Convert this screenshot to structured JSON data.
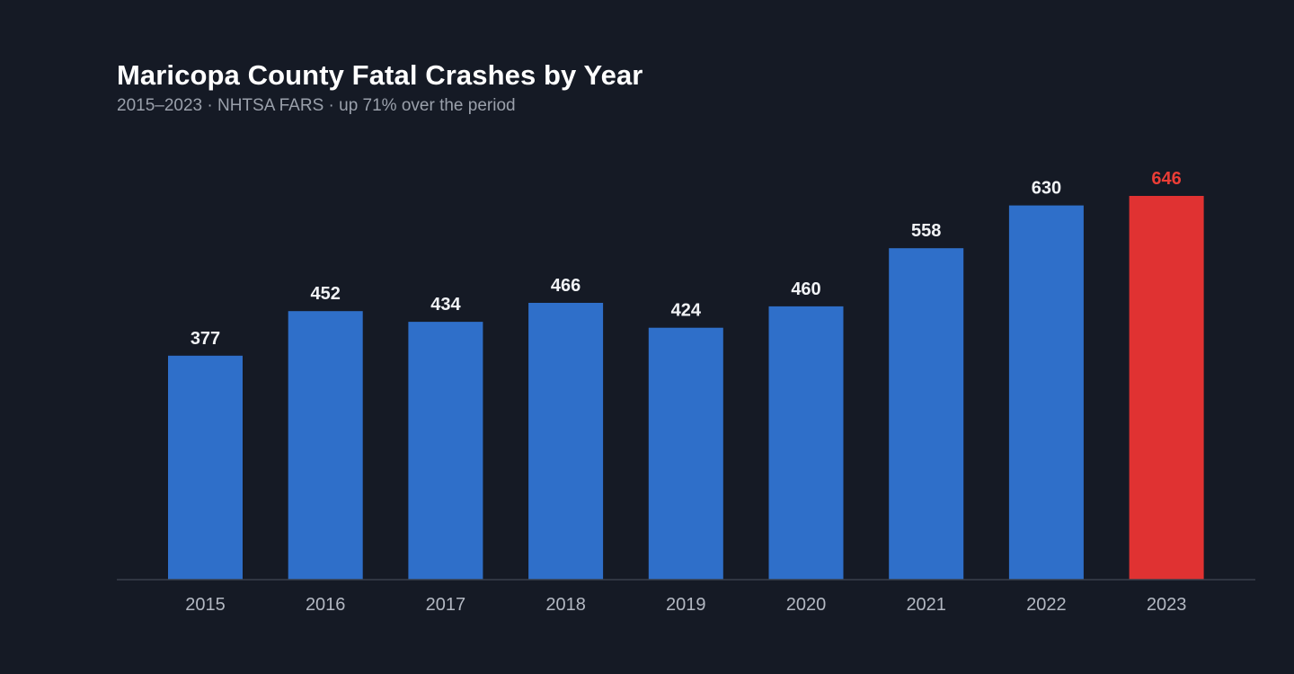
{
  "chart": {
    "title": "Maricopa County Fatal Crashes by Year",
    "subtitle": "2015–2023 · NHTSA FARS · up 71% over the period"
  },
  "colors": {
    "background": "#151a25",
    "bar": "#2f6fc9",
    "highlight": "#e03232",
    "label": "#f1f3f6",
    "highlight_label": "#ea3d36",
    "axis": "#3a404c"
  },
  "chart_data": {
    "type": "bar",
    "title": "Maricopa County Fatal Crashes by Year",
    "subtitle": "2015–2023 · NHTSA FARS · up 71% over the period",
    "xlabel": "",
    "ylabel": "",
    "categories": [
      "2015",
      "2016",
      "2017",
      "2018",
      "2019",
      "2020",
      "2021",
      "2022",
      "2023"
    ],
    "values": [
      377,
      452,
      434,
      466,
      424,
      460,
      558,
      630,
      646
    ],
    "highlight_category": "2023",
    "ylim": [
      0,
      646
    ],
    "grid": false,
    "data_labels": true,
    "legend": "none"
  }
}
